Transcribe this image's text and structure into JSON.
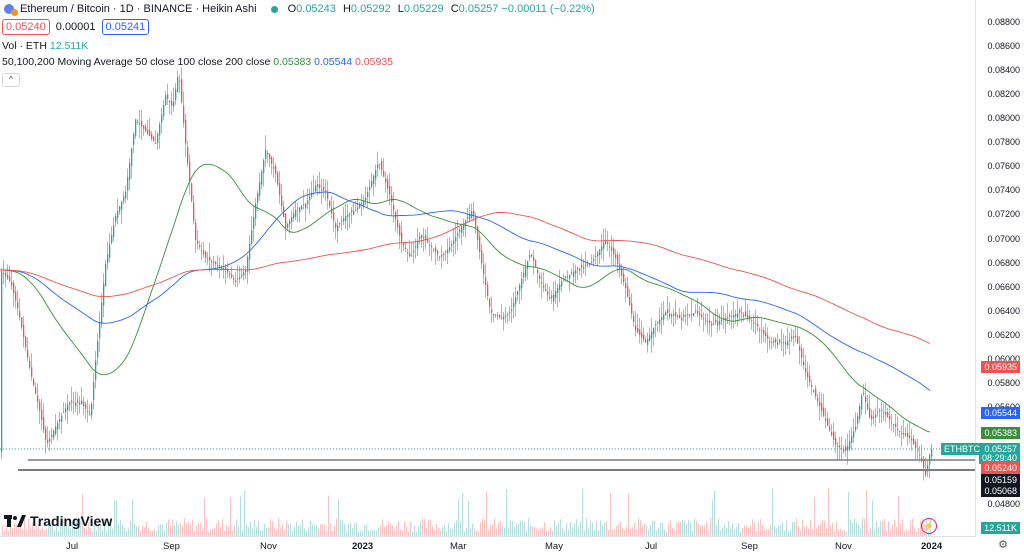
{
  "header": {
    "symbol_title": "Ethereum / Bitcoin · 1D · BINANCE · Heikin Ashi",
    "ohlc": {
      "o_label": "O",
      "o": "0.05243",
      "h_label": "H",
      "h": "0.05292",
      "l_label": "L",
      "l": "0.05229",
      "c_label": "C",
      "c": "0.05257",
      "change": "−0.00011 (−0.22%)"
    },
    "sell_price": "0.05240",
    "spread": "0.00001",
    "buy_price": "0.05241"
  },
  "volume_indicator": {
    "label": "Vol · ETH",
    "value": "12.511K"
  },
  "ma_indicator": {
    "label": "50,100,200 Moving Average 50 close 100 close 200 close",
    "ma50": "0.05383",
    "ma100": "0.05544",
    "ma200": "0.05935"
  },
  "price_scale": {
    "ticks": [
      "0.08800",
      "0.08600",
      "0.08400",
      "0.08200",
      "0.08000",
      "0.07800",
      "0.07600",
      "0.07400",
      "0.07200",
      "0.07000",
      "0.06800",
      "0.06600",
      "0.06400",
      "0.06200",
      "0.06000",
      "0.05800",
      "0.05600",
      "0.04800"
    ],
    "tags": [
      {
        "text": "0.05935",
        "color": "#ef5350"
      },
      {
        "text": "0.05544",
        "color": "#2962ff"
      },
      {
        "text": "0.05383",
        "color": "#388e3c"
      },
      {
        "text": "0.05257",
        "color": "#26a69a"
      },
      {
        "text": "08:29:40",
        "color": "#26a69a"
      },
      {
        "text": "0.05240",
        "color": "#ef5350"
      },
      {
        "text": "0.05159",
        "color": "#131722"
      },
      {
        "text": "0.05068",
        "color": "#131722"
      },
      {
        "text": "12.511K",
        "color": "#26a69a"
      }
    ],
    "symbol_tag": "ETHBTC"
  },
  "time_axis": [
    "Jul",
    "Sep",
    "Nov",
    "2023",
    "Mar",
    "May",
    "Jul",
    "Sep",
    "Nov",
    "2024"
  ],
  "brand": "TradingView",
  "colors": {
    "up": "#26a69a",
    "down": "#ef5350",
    "ma50": "#388e3c",
    "ma100": "#2962ff",
    "ma200": "#ef5350"
  },
  "chart_data": {
    "type": "candlestick",
    "ma50_end": 0.05383,
    "ma100_end": 0.05544,
    "ma200_end": 0.05935,
    "last_close": 0.05257,
    "support_levels": [
      0.05159,
      0.05068
    ]
  }
}
